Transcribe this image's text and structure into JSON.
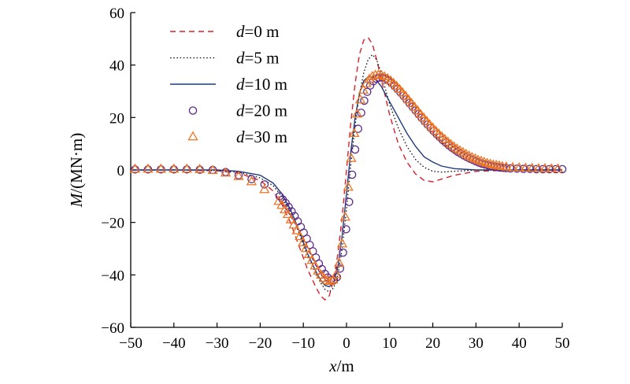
{
  "chart_data": {
    "type": "line",
    "title": "",
    "xlabel": {
      "var": "x",
      "unit": "/m"
    },
    "ylabel": {
      "var": "M",
      "unit": "/(MN·m)"
    },
    "xlim": [
      -50,
      50
    ],
    "ylim": [
      -60,
      60
    ],
    "x_ticks": [
      -50,
      -40,
      -30,
      -20,
      -10,
      0,
      10,
      20,
      30,
      40,
      50
    ],
    "y_ticks": [
      -60,
      -40,
      -20,
      0,
      20,
      40,
      60
    ],
    "grid": false,
    "legend_position": "top-left",
    "series": [
      {
        "name": {
          "var": "d",
          "rest": "=0 m"
        },
        "style": "dashed-line",
        "color": "#d9202a",
        "x": [
          -50,
          -40,
          -30,
          -25,
          -20,
          -17,
          -15,
          -13,
          -11,
          -9,
          -7,
          -6,
          -5,
          -4,
          -3,
          -2,
          -1,
          0,
          1,
          2,
          3,
          4,
          5,
          6,
          7,
          8,
          10,
          12,
          14,
          16,
          18,
          20,
          22,
          25,
          30,
          40,
          50
        ],
        "y": [
          0,
          0,
          -0.3,
          -1.2,
          -4,
          -8,
          -13,
          -20,
          -29,
          -38,
          -45,
          -48,
          -49.5,
          -48,
          -42,
          -32,
          -18,
          0,
          18,
          33,
          44,
          49.5,
          50.5,
          48,
          42,
          35,
          21,
          10,
          3,
          -1.5,
          -4,
          -4.5,
          -3.5,
          -2,
          -0.5,
          0,
          0
        ]
      },
      {
        "name": {
          "var": "d",
          "rest": "=5 m"
        },
        "style": "dotted-line",
        "color": "#111111",
        "x": [
          -50,
          -40,
          -30,
          -25,
          -20,
          -17,
          -15,
          -13,
          -11,
          -9,
          -7,
          -6,
          -5,
          -4,
          -3,
          -2,
          -1,
          0,
          1,
          2,
          3,
          4,
          5,
          6,
          7,
          8,
          9,
          10,
          12,
          14,
          16,
          18,
          20,
          22,
          25,
          30,
          40,
          50
        ],
        "y": [
          0,
          0,
          -0.2,
          -0.8,
          -3,
          -6,
          -10,
          -16,
          -24,
          -33,
          -40,
          -43,
          -45.5,
          -46.5,
          -45,
          -40,
          -30,
          -15,
          2,
          17,
          29,
          37,
          42,
          44,
          42,
          37,
          31,
          25,
          16,
          9,
          4,
          1,
          -0.5,
          -0.8,
          -0.5,
          0,
          0,
          0
        ]
      },
      {
        "name": {
          "var": "d",
          "rest": "=10 m"
        },
        "style": "solid-line",
        "color": "#1f3a7a",
        "x": [
          -50,
          -40,
          -30,
          -25,
          -20,
          -17,
          -15,
          -13,
          -11,
          -9,
          -7,
          -6,
          -5,
          -4,
          -3,
          -2,
          -1,
          0,
          1,
          2,
          3,
          4,
          5,
          6,
          7,
          8,
          9,
          10,
          12,
          14,
          16,
          18,
          20,
          22,
          25,
          30,
          35,
          40,
          50
        ],
        "y": [
          0,
          0,
          0,
          -0.5,
          -2,
          -5,
          -9,
          -15,
          -23,
          -32,
          -39,
          -42,
          -44,
          -44.5,
          -43,
          -37,
          -25,
          -9,
          7,
          20,
          29,
          34,
          35.5,
          35.5,
          34,
          32,
          29,
          26,
          20,
          14,
          9,
          5,
          3,
          1.5,
          0.5,
          0,
          0,
          0,
          0
        ]
      },
      {
        "name": {
          "var": "d",
          "rest": "=20 m"
        },
        "style": "circle-markers",
        "color": "#5a2a8a",
        "x": [
          -49,
          -46,
          -43,
          -40,
          -37,
          -34,
          -31,
          -28,
          -25,
          -22,
          -19,
          -15.5,
          -14.8,
          -14.1,
          -13.4,
          -12.7,
          -12,
          -11.3,
          -10.6,
          -9.9,
          -9.2,
          -8.5,
          -7.8,
          -7.1,
          -6.4,
          -5.7,
          -5,
          -4.3,
          -3.6,
          -2.9,
          -2.2,
          -1.5,
          -0.8,
          -0.1,
          0.6,
          1.3,
          2,
          2.7,
          3.4,
          4.1,
          4.8,
          5.5,
          6.2,
          6.9,
          7.6,
          8.3,
          9,
          9.7,
          10.4,
          11.1,
          11.8,
          12.5,
          13.2,
          13.9,
          14.6,
          15.3,
          16,
          16.7,
          17.4,
          18.1,
          18.8,
          19.5,
          20.2,
          20.9,
          21.6,
          22.3,
          23,
          23.7,
          24.4,
          25.1,
          25.8,
          26.5,
          27.2,
          27.9,
          28.6,
          29.3,
          30,
          30.7,
          31.4,
          32.1,
          32.8,
          33.5,
          34.2,
          34.9,
          35.6,
          36.3,
          37,
          38,
          39.5,
          41,
          42.5,
          44,
          45.5,
          47,
          48.5,
          50
        ],
        "y": [
          0.2,
          0.2,
          0.2,
          0.2,
          0.2,
          0.1,
          0,
          -0.8,
          -2,
          -3.5,
          -5.5,
          -10,
          -11.2,
          -12.6,
          -14.1,
          -15.8,
          -17.6,
          -19.6,
          -21.7,
          -23.9,
          -26.2,
          -28.6,
          -31,
          -33.4,
          -35.7,
          -37.8,
          -39.6,
          -41,
          -41.9,
          -42,
          -40.9,
          -37.6,
          -31.5,
          -22.6,
          -12.2,
          -1.8,
          7.8,
          15.7,
          21.8,
          26.4,
          29.8,
          32.2,
          33.8,
          34.8,
          35.2,
          35.2,
          34.8,
          34.1,
          33.2,
          32.1,
          30.9,
          29.6,
          28.3,
          26.9,
          25.5,
          24.1,
          22.7,
          21.3,
          19.9,
          18.6,
          17.3,
          16,
          14.8,
          13.6,
          12.5,
          11.4,
          10.4,
          9.4,
          8.5,
          7.7,
          6.9,
          6.2,
          5.5,
          4.9,
          4.3,
          3.8,
          3.3,
          2.8,
          2.4,
          2.1,
          1.8,
          1.5,
          1.3,
          1.1,
          0.9,
          0.8,
          0.7,
          0.6,
          0.5,
          0.4,
          0.4,
          0.3,
          0.3,
          0.3,
          0.3,
          0.3
        ]
      },
      {
        "name": {
          "var": "d",
          "rest": "=30 m"
        },
        "style": "triangle-markers",
        "color": "#ee7523",
        "x": [
          -49,
          -46,
          -43,
          -40,
          -37,
          -34,
          -31,
          -28,
          -25,
          -22,
          -19,
          -15.7,
          -15,
          -14.3,
          -13.6,
          -12.9,
          -12.2,
          -11.5,
          -10.8,
          -10.1,
          -9.4,
          -8.7,
          -8,
          -7.3,
          -6.6,
          -5.9,
          -5.2,
          -4.5,
          -3.8,
          -3.1,
          -2.4,
          -1.7,
          -1,
          -0.3,
          0.4,
          1.1,
          1.8,
          2.5,
          3.2,
          3.9,
          4.6,
          5.3,
          6,
          6.7,
          7.4,
          8.1,
          8.8,
          9.5,
          10.2,
          10.9,
          11.6,
          12.3,
          13,
          13.7,
          14.4,
          15.1,
          15.8,
          16.5,
          17.2,
          17.9,
          18.6,
          19.3,
          20,
          20.7,
          21.4,
          22.1,
          22.8,
          23.5,
          24.2,
          24.9,
          25.6,
          26.3,
          27,
          27.7,
          28.4,
          29.1,
          29.8,
          30.5,
          31.2,
          31.9,
          32.6,
          33.3,
          34,
          34.7,
          35.4,
          36.1,
          37,
          38.5,
          40,
          41.5,
          43,
          44.5,
          46,
          47.5,
          49
        ],
        "y": [
          0.3,
          0.3,
          0.3,
          0.3,
          0.3,
          0.2,
          -0.2,
          -1.2,
          -2.5,
          -4.5,
          -7.5,
          -12,
          -13.5,
          -15.2,
          -17,
          -19,
          -21,
          -23.2,
          -25.4,
          -27.7,
          -30,
          -32.3,
          -34.5,
          -36.6,
          -38.5,
          -40.1,
          -41.4,
          -42.2,
          -42.5,
          -42,
          -40,
          -35.6,
          -28.2,
          -18,
          -6.6,
          4.4,
          13.9,
          21.3,
          26.7,
          30.4,
          32.9,
          34.6,
          35.6,
          36.1,
          36.2,
          36,
          35.5,
          34.8,
          34,
          33,
          31.9,
          30.7,
          29.4,
          28.1,
          26.7,
          25.3,
          23.9,
          22.5,
          21.1,
          19.8,
          18.5,
          17.2,
          16,
          14.8,
          13.7,
          12.6,
          11.6,
          10.6,
          9.7,
          8.8,
          8,
          7.3,
          6.6,
          5.9,
          5.3,
          4.7,
          4.2,
          3.7,
          3.3,
          2.9,
          2.5,
          2.2,
          1.9,
          1.7,
          1.5,
          1.3,
          1.1,
          0.9,
          0.8,
          0.7,
          0.6,
          0.5,
          0.5,
          0.4,
          0.4
        ]
      }
    ]
  }
}
